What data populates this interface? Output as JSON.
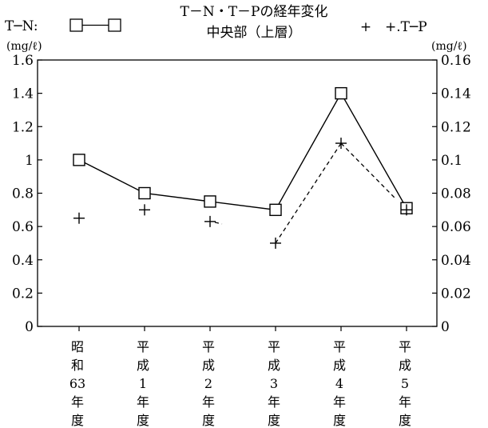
{
  "chart_data": {
    "type": "line",
    "title": "T－N・T－Pの経年変化",
    "subtitle": "中央部（上層）",
    "categories": [
      [
        "昭",
        "和",
        "63",
        "年",
        "度"
      ],
      [
        "平",
        "成",
        "1",
        "年",
        "度"
      ],
      [
        "平",
        "成",
        "2",
        "年",
        "度"
      ],
      [
        "平",
        "成",
        "3",
        "年",
        "度"
      ],
      [
        "平",
        "成",
        "4",
        "年",
        "度"
      ],
      [
        "平",
        "成",
        "5",
        "年",
        "度"
      ]
    ],
    "y_left": {
      "unit": "(mg/ℓ)",
      "lim": [
        0,
        1.6
      ],
      "ticks": [
        0,
        0.2,
        0.4,
        0.6,
        0.8,
        1,
        1.2,
        1.4,
        1.6
      ],
      "tick_labels": [
        "0",
        "0.2",
        "0.4",
        "0.6",
        "0.8",
        "1",
        "1.2",
        "1.4",
        "1.6"
      ]
    },
    "y_right": {
      "unit": "(mg/ℓ)",
      "lim": [
        0,
        0.16
      ],
      "ticks": [
        0,
        0.02,
        0.04,
        0.06,
        0.08,
        0.1,
        0.12,
        0.14,
        0.16
      ],
      "tick_labels": [
        "0",
        "0.02",
        "0.04",
        "0.06",
        "0.08",
        "0.1",
        "0.12",
        "0.14",
        "0.16"
      ]
    },
    "series": [
      {
        "name": "T-N",
        "legend_label": "T─N:",
        "axis": "left",
        "marker": "square",
        "line_style": "solid",
        "values": [
          1.0,
          0.8,
          0.75,
          0.7,
          1.4,
          0.71
        ]
      },
      {
        "name": "T-P",
        "legend_label": "+.T─P",
        "legend_marker_text": "+",
        "axis": "right",
        "marker": "plus",
        "line_style": "dashed",
        "values": [
          0.065,
          0.07,
          0.063,
          0.05,
          0.11,
          0.07
        ]
      }
    ],
    "grid": false,
    "legend_position": "top"
  }
}
